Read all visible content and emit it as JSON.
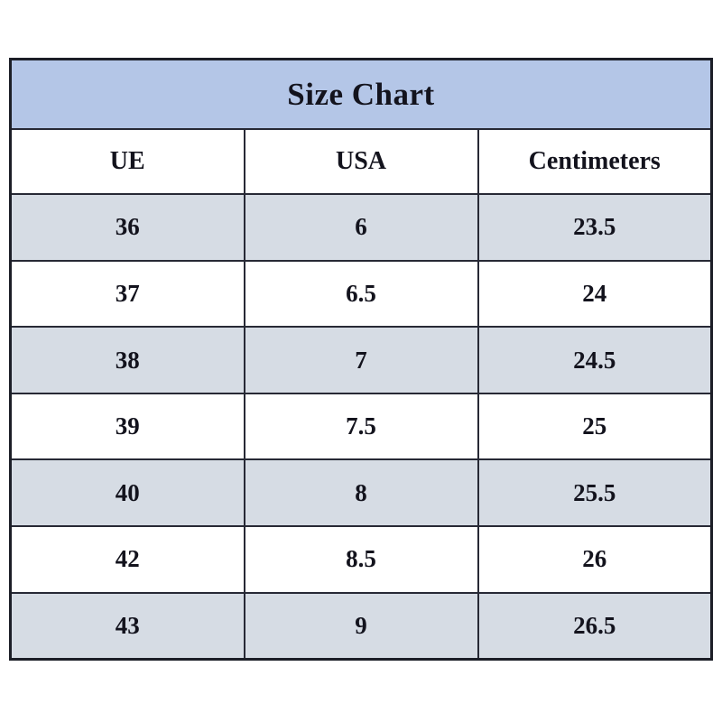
{
  "chart_data": {
    "type": "table",
    "title": "Size Chart",
    "columns": [
      "UE",
      "USA",
      "Centimeters"
    ],
    "rows": [
      [
        "36",
        "6",
        "23.5"
      ],
      [
        "37",
        "6.5",
        "24"
      ],
      [
        "38",
        "7",
        "24.5"
      ],
      [
        "39",
        "7.5",
        "25"
      ],
      [
        "40",
        "8",
        "25.5"
      ],
      [
        "42",
        "8.5",
        "26"
      ],
      [
        "43",
        "9",
        "26.5"
      ]
    ],
    "layout_hints": {
      "title_band_position": "top",
      "alternating_rows": "odd data rows shaded, starting with first",
      "grid": "on"
    },
    "colors": {
      "title_bg": "#b4c6e7",
      "row_alt_bg": "#d6dce4",
      "row_bg": "#ffffff",
      "border": "#1c1e27",
      "text": "#13131d"
    }
  }
}
